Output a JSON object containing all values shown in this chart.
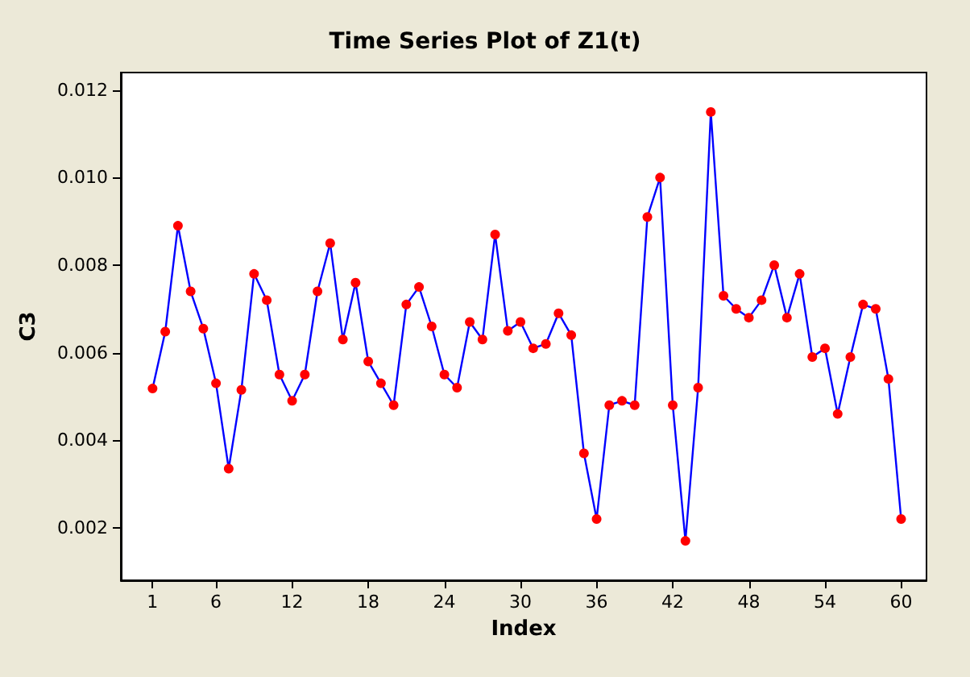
{
  "chart_data": {
    "type": "line",
    "title": "Time Series Plot of Z1(t)",
    "xlabel": "Index",
    "ylabel": "C3",
    "marker": "circle",
    "line_style": "solid",
    "grid": false,
    "x": [
      1,
      2,
      3,
      4,
      5,
      6,
      7,
      8,
      9,
      10,
      11,
      12,
      13,
      14,
      15,
      16,
      17,
      18,
      19,
      20,
      21,
      22,
      23,
      24,
      25,
      26,
      27,
      28,
      29,
      30,
      31,
      32,
      33,
      34,
      35,
      36,
      37,
      38,
      39,
      40,
      41,
      42,
      43,
      44,
      45,
      46,
      47,
      48,
      49,
      50,
      51,
      52,
      53,
      54,
      55,
      56,
      57,
      58,
      59,
      60
    ],
    "series": [
      {
        "color": "#0000ff",
        "colors": [
          "#ff0000",
          "#ff0000",
          "#ff0000",
          "#ff0000",
          "#ff0000",
          "#ff0000",
          "#ff0000",
          "#ff0000",
          "#ff0000",
          "#ff0000",
          "#ff0000",
          "#ff0000",
          "#ff0000",
          "#ff0000",
          "#ff0000",
          "#ff0000",
          "#ff0000",
          "#ff0000",
          "#ff0000",
          "#ff0000",
          "#ff0000",
          "#ff0000",
          "#ff0000",
          "#ff0000",
          "#ff0000",
          "#ff0000",
          "#ff0000",
          "#ff0000",
          "#ff0000",
          "#ff0000",
          "#ff0000",
          "#ff0000",
          "#ff0000",
          "#ff0000",
          "#ff0000",
          "#ff0000",
          "#ff0000",
          "#ff0000",
          "#ff0000",
          "#ff0000",
          "#ff0000",
          "#ff0000",
          "#ff0000",
          "#ff0000",
          "#ff0000",
          "#ff0000",
          "#ff0000",
          "#ff0000",
          "#ff0000",
          "#ff0000",
          "#ff0000",
          "#ff0000",
          "#ff0000",
          "#ff0000",
          "#ff0000",
          "#ff0000",
          "#ff0000",
          "#ff0000",
          "#ff0000",
          "#ff0000"
        ],
        "values": [
          0.00518,
          0.00648,
          0.0089,
          0.0074,
          0.00655,
          0.0053,
          0.00335,
          0.00515,
          0.0078,
          0.0072,
          0.0055,
          0.0049,
          0.0055,
          0.0074,
          0.0085,
          0.0063,
          0.0076,
          0.0058,
          0.0053,
          0.0048,
          0.0071,
          0.0075,
          0.0066,
          0.0055,
          0.0052,
          0.0067,
          0.0063,
          0.0087,
          0.0065,
          0.0067,
          0.0061,
          0.0062,
          0.0069,
          0.0064,
          0.0037,
          0.0022,
          0.0048,
          0.0049,
          0.0048,
          0.0091,
          0.01,
          0.0048,
          0.0017,
          0.0052,
          0.0115,
          0.0073,
          0.007,
          0.0068,
          0.0072,
          0.008,
          0.0068,
          0.0078,
          0.0059,
          0.0061,
          0.0046,
          0.0059,
          0.0071,
          0.007,
          0.0054,
          0.0022
        ]
      }
    ],
    "xlim": [
      -1.5,
      62
    ],
    "xticks": [
      1,
      6,
      12,
      18,
      24,
      30,
      36,
      42,
      48,
      54,
      60
    ],
    "ylim": [
      0.0008,
      0.0124
    ],
    "yticks": [
      0.002,
      0.004,
      0.006,
      0.008,
      {
        "value": 0.01,
        "label": "0.010"
      },
      0.012
    ]
  }
}
